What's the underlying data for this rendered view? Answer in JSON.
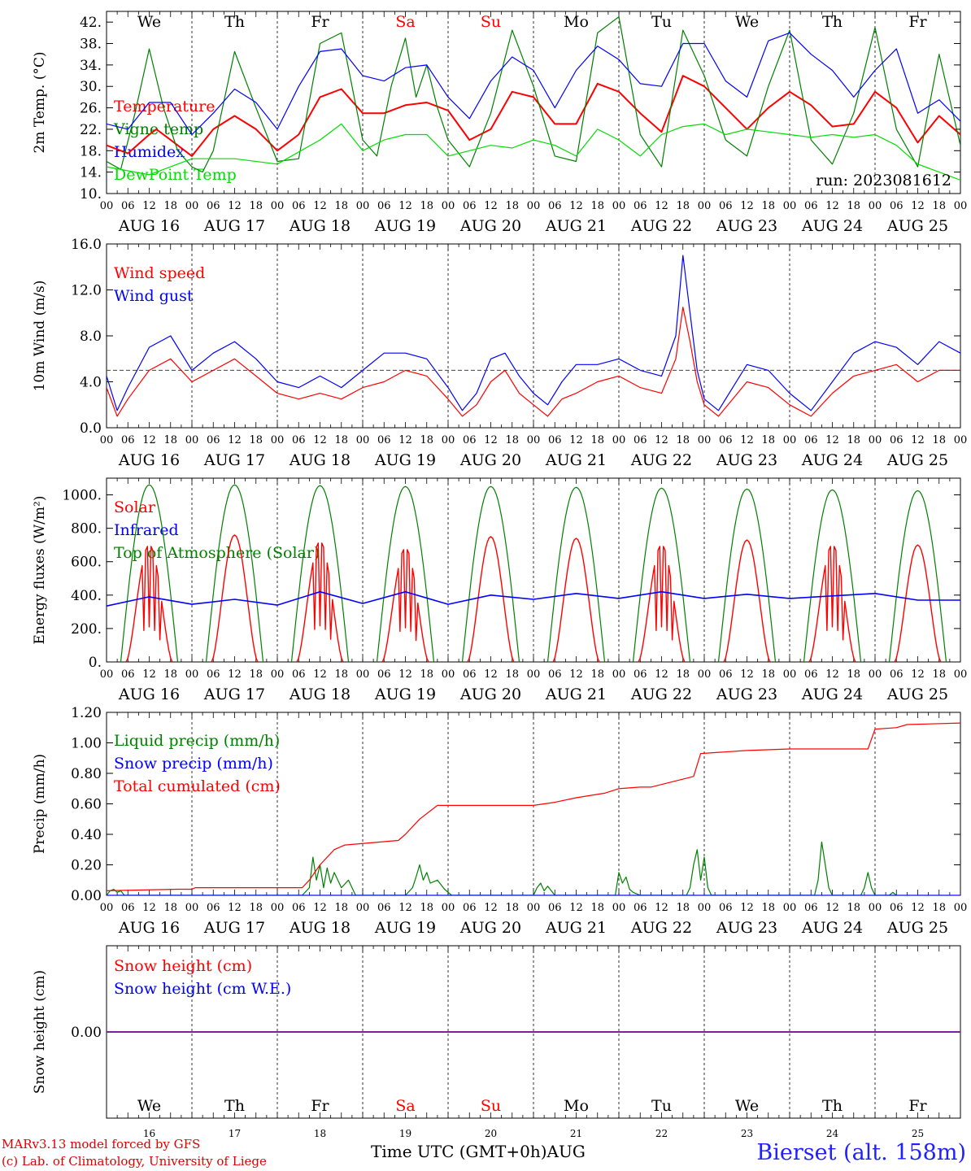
{
  "meta": {
    "run_label": "run: 2023081612",
    "station": "Bierset (alt. 158m)",
    "credit_line1": "MARv3.13 model forced by GFS",
    "credit_line2": "(c) Lab. of Climatology, University of Liege",
    "time_axis_label": "Time UTC (GMT+0h)AUG"
  },
  "colors": {
    "temperature": "#ff0000",
    "vigne": "#008000",
    "humidex": "#0000ff",
    "dewpoint": "#00dd00",
    "weekend": "#ff0000",
    "axis": "#000000"
  },
  "days": {
    "weekdays": [
      "We",
      "Th",
      "Fr",
      "Sa",
      "Su",
      "Mo",
      "Tu",
      "We",
      "Th",
      "Fr"
    ],
    "weekend_flags": [
      false,
      false,
      false,
      true,
      true,
      false,
      false,
      false,
      false,
      false
    ],
    "dates": [
      "AUG 16",
      "AUG 17",
      "AUG 18",
      "AUG 19",
      "AUG 20",
      "AUG 21",
      "AUG 22",
      "AUG 23",
      "AUG 24",
      "AUG 25"
    ],
    "day_numbers": [
      "16",
      "17",
      "18",
      "19",
      "20",
      "21",
      "22",
      "23",
      "24",
      "25"
    ],
    "hour_labels": [
      "00",
      "06",
      "12",
      "18"
    ],
    "final_hour_label": "00"
  },
  "chart_data": [
    {
      "type": "line",
      "ylabel": "2m Temp. (°C)",
      "ylim": [
        10,
        44
      ],
      "yticks": [
        "10.",
        "14.",
        "18.",
        "22.",
        "26.",
        "30.",
        "34.",
        "38.",
        "42."
      ],
      "x_unit": "hours since Aug 16 00 UTC",
      "series": [
        {
          "name": "Temperature",
          "key": "temperature",
          "x": [
            0,
            6,
            12,
            14,
            18,
            24,
            30,
            36,
            42,
            48,
            54,
            60,
            66,
            72,
            78,
            84,
            90,
            96,
            102,
            108,
            114,
            120,
            126,
            132,
            138,
            144,
            150,
            156,
            162,
            168,
            174,
            180,
            186,
            192,
            198,
            204,
            210,
            216,
            222,
            228,
            234,
            240
          ],
          "y": [
            19,
            17.5,
            21,
            22,
            20,
            17,
            22,
            24.5,
            22,
            18,
            21,
            28,
            29.5,
            25,
            25,
            26.5,
            27,
            25.5,
            20,
            22,
            29,
            28,
            23,
            23,
            30.5,
            29,
            25,
            21.5,
            32,
            30,
            26,
            22,
            26,
            29,
            26.5,
            22.5,
            23,
            29,
            26,
            19.5,
            24.5,
            21
          ]
        },
        {
          "name": "Vigne temp",
          "key": "vigne",
          "x": [
            0,
            4,
            8,
            12,
            16,
            20,
            24,
            27,
            30,
            36,
            42,
            48,
            54,
            60,
            66,
            72,
            76,
            80,
            84,
            87,
            90,
            93,
            96,
            102,
            108,
            114,
            120,
            126,
            132,
            138,
            142,
            144,
            147,
            150,
            156,
            162,
            168,
            174,
            180,
            186,
            192,
            198,
            204,
            210,
            216,
            222,
            228,
            234,
            240
          ],
          "y": [
            16,
            14.5,
            25,
            37,
            26,
            18,
            15,
            14,
            18,
            36.5,
            26,
            16,
            16.5,
            38,
            40,
            20,
            17,
            30,
            39,
            28,
            34,
            26,
            20,
            15,
            25,
            40.5,
            30,
            17,
            16,
            40,
            42,
            43,
            32,
            21,
            15,
            40.5,
            32,
            20,
            17,
            30,
            40.5,
            20,
            15.5,
            25,
            41,
            22,
            15,
            36,
            19
          ]
        },
        {
          "name": "Humidex",
          "key": "humidex",
          "x": [
            0,
            6,
            12,
            18,
            24,
            30,
            36,
            42,
            48,
            54,
            60,
            66,
            72,
            78,
            84,
            90,
            96,
            102,
            108,
            114,
            120,
            126,
            132,
            138,
            144,
            150,
            156,
            162,
            168,
            174,
            180,
            186,
            192,
            198,
            204,
            210,
            216,
            222,
            228,
            234,
            240
          ],
          "y": [
            23,
            22,
            27,
            27,
            21,
            25,
            29.5,
            27,
            22,
            30,
            36.5,
            37,
            32,
            31,
            33.5,
            34,
            28,
            24,
            31,
            35.5,
            33,
            26,
            33,
            37.5,
            35,
            30.5,
            30,
            38,
            38,
            31,
            28,
            38.5,
            40,
            36,
            33,
            28,
            33,
            37,
            25,
            27.5,
            23.5
          ]
        },
        {
          "name": "DewPoint Temp",
          "key": "dewpoint",
          "x": [
            0,
            12,
            24,
            36,
            48,
            60,
            66,
            72,
            78,
            84,
            90,
            96,
            102,
            108,
            114,
            120,
            126,
            132,
            138,
            144,
            150,
            156,
            162,
            168,
            174,
            180,
            186,
            192,
            198,
            204,
            210,
            216,
            222,
            228,
            234,
            240
          ],
          "y": [
            15,
            13.5,
            16.5,
            16.5,
            15.5,
            20,
            23,
            18,
            20,
            21,
            21,
            17,
            18,
            19,
            18.5,
            20,
            19,
            17,
            22,
            20,
            17,
            21,
            22.5,
            23,
            21,
            22,
            21.5,
            21,
            20.5,
            21,
            20.5,
            21,
            19,
            15.5,
            14,
            12.5
          ]
        }
      ],
      "legend_labels": [
        "Temperature",
        "Vigne temp",
        "Humidex",
        "DewPoint Temp"
      ]
    },
    {
      "type": "line",
      "ylabel": "10m Wind (m/s)",
      "ylim": [
        0,
        16
      ],
      "yticks": [
        "0.0",
        "4.0",
        "8.0",
        "12.0",
        "16.0"
      ],
      "reference_line": 5,
      "series": [
        {
          "name": "Wind speed",
          "key": "temperature",
          "x": [
            0,
            3,
            6,
            12,
            18,
            24,
            30,
            36,
            42,
            48,
            54,
            60,
            66,
            72,
            78,
            84,
            90,
            96,
            100,
            104,
            108,
            112,
            116,
            120,
            124,
            128,
            132,
            138,
            144,
            150,
            156,
            160,
            162,
            164,
            166,
            168,
            172,
            176,
            180,
            186,
            192,
            198,
            204,
            210,
            216,
            222,
            228,
            234,
            240
          ],
          "y": [
            3.5,
            1,
            2.5,
            5,
            6,
            4,
            5,
            6,
            4.5,
            3,
            2.5,
            3,
            2.5,
            3.5,
            4,
            5,
            4.5,
            2.5,
            1,
            2,
            4,
            5,
            3,
            2,
            1,
            2.5,
            3,
            4,
            4.5,
            3.5,
            3,
            6,
            10.5,
            7.5,
            4,
            2,
            1,
            2.5,
            4,
            3.5,
            2,
            1,
            3,
            4.5,
            5,
            5.5,
            4,
            5,
            5
          ]
        },
        {
          "name": "Wind gust",
          "key": "humidex",
          "x": [
            0,
            3,
            6,
            12,
            18,
            24,
            30,
            36,
            42,
            48,
            54,
            60,
            66,
            72,
            78,
            84,
            90,
            96,
            100,
            104,
            108,
            112,
            116,
            120,
            124,
            128,
            132,
            138,
            144,
            150,
            156,
            160,
            162,
            164,
            166,
            168,
            172,
            176,
            180,
            186,
            192,
            198,
            204,
            210,
            216,
            222,
            228,
            234,
            240
          ],
          "y": [
            4.5,
            1.5,
            3.5,
            7,
            8,
            5,
            6.5,
            7.5,
            6,
            4,
            3.5,
            4.5,
            3.5,
            5,
            6.5,
            6.5,
            6,
            3.5,
            1.5,
            3,
            6,
            6.5,
            4.5,
            3,
            2,
            4,
            5.5,
            5.5,
            6,
            5,
            4.5,
            8,
            15,
            10,
            5,
            2.5,
            1.5,
            3.5,
            5.5,
            5,
            3,
            1.5,
            4,
            6.5,
            7.5,
            7,
            5.5,
            7.5,
            6.5
          ]
        }
      ],
      "legend_labels": [
        "Wind speed",
        "Wind gust"
      ]
    },
    {
      "type": "line",
      "ylabel": "Energy fluxes (W/m²)",
      "ylim": [
        0,
        1100
      ],
      "yticks": [
        "0.",
        "200.",
        "400.",
        "600.",
        "800.",
        "1000."
      ],
      "series": [
        {
          "name": "Solar",
          "key": "temperature",
          "peaks": [
            700,
            760,
            720,
            680,
            750,
            740,
            700,
            730,
            700,
            700
          ],
          "cloudy_days": [
            0,
            2,
            3,
            6,
            8
          ]
        },
        {
          "name": "Infrared",
          "key": "humidex",
          "x": [
            0,
            12,
            24,
            36,
            48,
            60,
            72,
            84,
            96,
            108,
            120,
            132,
            144,
            156,
            168,
            180,
            192,
            204,
            216,
            228,
            240
          ],
          "y": [
            335,
            390,
            345,
            375,
            340,
            420,
            350,
            420,
            345,
            400,
            375,
            410,
            380,
            420,
            380,
            405,
            380,
            395,
            410,
            370,
            370
          ]
        },
        {
          "name": "Top of Atmosphere (Solar)",
          "key": "vigne",
          "peaks": [
            1060,
            1060,
            1055,
            1050,
            1050,
            1045,
            1040,
            1035,
            1030,
            1025
          ]
        }
      ],
      "legend_labels": [
        "Solar",
        "Infrared",
        "Top of Atmosphere (Solar)"
      ]
    },
    {
      "type": "line",
      "ylabel": "Precip (mm/h)",
      "ylim": [
        0,
        1.2
      ],
      "yticks": [
        "0.00",
        "0.20",
        "0.40",
        "0.60",
        "0.80",
        "1.00",
        "1.20"
      ],
      "series": [
        {
          "name": "Liquid precip (mm/h)",
          "key": "vigne",
          "x": [
            0,
            1,
            2,
            3,
            4,
            5,
            55,
            57,
            58,
            59,
            60,
            61,
            62,
            63,
            64,
            66,
            68,
            70,
            84,
            86,
            87,
            88,
            89,
            90,
            91,
            93,
            95,
            97,
            120,
            121,
            122,
            123,
            124,
            126,
            143,
            144,
            145,
            146,
            147,
            148,
            150,
            163,
            164,
            165,
            166,
            167,
            168,
            169,
            170,
            199,
            200,
            201,
            202,
            203,
            204,
            212,
            213,
            214,
            215,
            216,
            220,
            221,
            222
          ],
          "y": [
            0,
            0.03,
            0.04,
            0.02,
            0.03,
            0,
            0,
            0.05,
            0.25,
            0.1,
            0.2,
            0.05,
            0.18,
            0.08,
            0.15,
            0.05,
            0.1,
            0,
            0,
            0.05,
            0.12,
            0.2,
            0.1,
            0.15,
            0.08,
            0.1,
            0.04,
            0,
            0,
            0.05,
            0.08,
            0.03,
            0.06,
            0,
            0,
            0.15,
            0.08,
            0.12,
            0.04,
            0.02,
            0,
            0,
            0.05,
            0.2,
            0.3,
            0.1,
            0.25,
            0.05,
            0,
            0,
            0.1,
            0.35,
            0.2,
            0.05,
            0,
            0,
            0.05,
            0.15,
            0.05,
            0,
            0,
            0.02,
            0
          ]
        },
        {
          "name": "Snow precip (mm/h)",
          "key": "humidex",
          "x": [
            0,
            240
          ],
          "y": [
            0,
            0
          ]
        },
        {
          "name": "Total cumulated (cm)",
          "key": "temperature",
          "x": [
            0,
            20,
            24,
            25,
            55,
            57,
            60,
            64,
            67,
            82,
            84,
            88,
            93,
            96,
            120,
            126,
            132,
            140,
            144,
            150,
            153,
            165,
            167,
            180,
            192,
            200,
            206,
            214,
            216,
            222,
            225,
            240
          ],
          "y": [
            0.03,
            0.04,
            0.04,
            0.05,
            0.05,
            0.1,
            0.2,
            0.3,
            0.33,
            0.36,
            0.4,
            0.5,
            0.59,
            0.59,
            0.59,
            0.61,
            0.64,
            0.67,
            0.7,
            0.71,
            0.71,
            0.78,
            0.93,
            0.95,
            0.96,
            0.96,
            0.96,
            0.96,
            1.09,
            1.1,
            1.12,
            1.13
          ]
        }
      ],
      "legend_labels": [
        "Liquid precip (mm/h)",
        "Snow precip (mm/h)",
        "Total cumulated (cm)"
      ]
    },
    {
      "type": "line",
      "ylabel": "Snow height (cm)",
      "yticks": [
        "0.00"
      ],
      "series": [
        {
          "name": "Snow height (cm)",
          "key": "temperature",
          "x": [
            0,
            240
          ],
          "y": [
            0,
            0
          ]
        },
        {
          "name": "Snow height (cm W.E.)",
          "key": "humidex",
          "x": [
            0,
            240
          ],
          "y": [
            0,
            0
          ]
        }
      ],
      "legend_labels": [
        "Snow height (cm)",
        "Snow height (cm W.E.)"
      ]
    }
  ]
}
